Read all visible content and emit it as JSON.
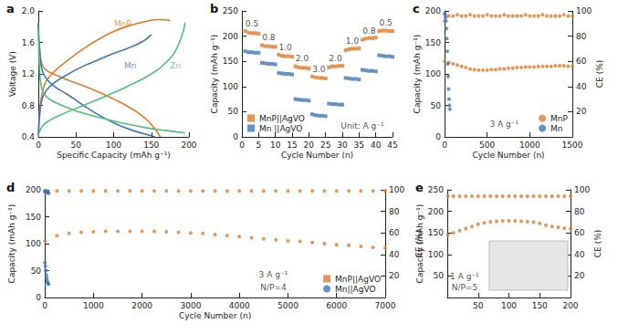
{
  "chart_data": [
    {
      "title": "a",
      "type": "line",
      "x_label": "Specific Capacity (mAh g⁻¹)",
      "y_label": "Voltage (V)",
      "xlim": [
        0,
        200
      ],
      "xticks": [
        0,
        50,
        100,
        150,
        200
      ],
      "ylim": [
        0.4,
        2.0
      ],
      "yticks": [
        0.4,
        0.8,
        1.2,
        1.6,
        {
          "value": 2.0,
          "label": "2.0"
        }
      ],
      "grid": false,
      "series": [
        {
          "color": "#e07b28",
          "x": [
            0,
            2,
            5,
            10,
            20,
            40,
            60,
            80,
            100,
            120,
            140,
            155,
            162
          ],
          "values": [
            1.85,
            1.5,
            1.32,
            1.25,
            1.2,
            1.12,
            1.05,
            0.97,
            0.88,
            0.78,
            0.65,
            0.5,
            0.4
          ]
        },
        {
          "color": "#e07b28",
          "x": [
            0,
            2,
            5,
            10,
            20,
            40,
            60,
            80,
            100,
            120,
            140,
            160,
            175
          ],
          "values": [
            0.4,
            0.75,
            0.95,
            1.1,
            1.22,
            1.38,
            1.52,
            1.64,
            1.74,
            1.81,
            1.86,
            1.89,
            1.88
          ]
        },
        {
          "color": "#3b78b8",
          "x": [
            0,
            2,
            5,
            10,
            20,
            40,
            60,
            80,
            100,
            120,
            140,
            155
          ],
          "values": [
            1.85,
            1.45,
            1.25,
            1.15,
            1.05,
            0.93,
            0.8,
            0.68,
            0.58,
            0.5,
            0.44,
            0.4
          ]
        },
        {
          "color": "#3b78b8",
          "x": [
            0,
            2,
            5,
            10,
            20,
            40,
            60,
            80,
            100,
            120,
            140,
            150
          ],
          "values": [
            0.4,
            0.7,
            0.88,
            0.98,
            1.08,
            1.2,
            1.3,
            1.38,
            1.46,
            1.53,
            1.62,
            1.7
          ]
        },
        {
          "color": "#4fc27a",
          "x": [
            0,
            2,
            5,
            10,
            20,
            50,
            80,
            110,
            140,
            170,
            195
          ],
          "values": [
            1.75,
            1.2,
            1.0,
            0.92,
            0.85,
            0.73,
            0.65,
            0.58,
            0.52,
            0.48,
            0.45
          ]
        },
        {
          "color": "#4fc27a",
          "x": [
            0,
            3,
            10,
            30,
            60,
            90,
            120,
            150,
            170,
            185,
            195
          ],
          "values": [
            0.4,
            0.5,
            0.58,
            0.68,
            0.8,
            0.92,
            1.05,
            1.2,
            1.35,
            1.55,
            1.85
          ]
        }
      ],
      "annotations": [
        {
          "text": "MnP",
          "x": 112,
          "y": 1.84,
          "color": "#e07b28"
        },
        {
          "text": "Mn",
          "x": 122,
          "y": 1.3,
          "color": "#3b78b8"
        },
        {
          "text": "Zn",
          "x": 182,
          "y": 1.3,
          "color": "#4fc27a"
        }
      ]
    },
    {
      "title": "b",
      "type": "scatter",
      "x_label": "Cycle Number (n)",
      "y_label": "Capacity (mAh g⁻¹)",
      "xlim": [
        0,
        45
      ],
      "xticks": [
        0,
        5,
        10,
        15,
        20,
        25,
        30,
        35,
        40,
        45
      ],
      "ylim": [
        0,
        250
      ],
      "yticks": [
        0,
        50,
        100,
        150,
        200,
        250
      ],
      "grid": false,
      "legend": "lower left",
      "marker": "square",
      "series": [
        {
          "name": "MnP||AgVO",
          "color": "#e07b28",
          "x": [
            1,
            2,
            3,
            4,
            5,
            6,
            7,
            8,
            9,
            10,
            11,
            12,
            13,
            14,
            15,
            16,
            17,
            18,
            19,
            20,
            21,
            22,
            23,
            24,
            25,
            26,
            27,
            28,
            29,
            30,
            31,
            32,
            33,
            34,
            35,
            36,
            37,
            38,
            39,
            40,
            41,
            42,
            43,
            44,
            45
          ],
          "values": [
            210,
            207,
            206,
            206,
            205,
            182,
            180,
            180,
            179,
            179,
            163,
            161,
            160,
            160,
            159,
            140,
            138,
            137,
            137,
            136,
            120,
            118,
            117,
            117,
            116,
            138,
            140,
            140,
            141,
            141,
            172,
            174,
            175,
            175,
            176,
            193,
            195,
            196,
            196,
            197,
            210,
            211,
            211,
            210,
            210
          ]
        },
        {
          "name": "Mn ||AgVO",
          "color": "#3b78b8",
          "x": [
            1,
            2,
            3,
            4,
            5,
            6,
            7,
            8,
            9,
            10,
            11,
            12,
            13,
            14,
            15,
            16,
            17,
            18,
            19,
            20,
            21,
            22,
            23,
            24,
            25,
            26,
            27,
            28,
            29,
            30,
            31,
            32,
            33,
            34,
            35,
            36,
            37,
            38,
            39,
            40,
            41,
            42,
            43,
            44,
            45
          ],
          "values": [
            170,
            168,
            168,
            167,
            167,
            147,
            146,
            145,
            145,
            144,
            127,
            126,
            125,
            125,
            124,
            75,
            74,
            73,
            73,
            72,
            45,
            43,
            42,
            42,
            41,
            66,
            65,
            65,
            64,
            64,
            117,
            116,
            115,
            115,
            114,
            133,
            132,
            131,
            131,
            130,
            162,
            161,
            160,
            160,
            159
          ]
        }
      ],
      "annotations": [
        {
          "text": "0.5",
          "x": 3,
          "y": 224
        },
        {
          "text": "0.8",
          "x": 8,
          "y": 198
        },
        {
          "text": "1.0",
          "x": 13,
          "y": 178
        },
        {
          "text": "2.0",
          "x": 18,
          "y": 155
        },
        {
          "text": "3.0",
          "x": 23,
          "y": 134
        },
        {
          "text": "2.0",
          "x": 28,
          "y": 156
        },
        {
          "text": "1.0",
          "x": 33,
          "y": 190
        },
        {
          "text": "0.8",
          "x": 38,
          "y": 210
        },
        {
          "text": "0.5",
          "x": 43,
          "y": 226
        },
        {
          "text": "Unit: A g⁻¹",
          "x": 36,
          "y": 22
        }
      ]
    },
    {
      "title": "c",
      "type": "scatter",
      "x_label": "Cycle Number (n)",
      "y_label": "Capacity (mAh g⁻¹)",
      "y2_label": "CE (%)",
      "xlim": [
        0,
        1500
      ],
      "xticks": [
        0,
        500,
        1000,
        1500
      ],
      "ylim": [
        0,
        200
      ],
      "yticks": [
        0,
        50,
        100,
        150,
        200
      ],
      "y2lim": [
        0,
        100
      ],
      "y2ticks": [
        20,
        40,
        60,
        80,
        100
      ],
      "grid": false,
      "legend": "lower right",
      "marker": "circle",
      "series": [
        {
          "name": "MnP",
          "color": "#e07b28",
          "x": [
            1,
            50,
            100,
            150,
            200,
            250,
            300,
            350,
            400,
            450,
            500,
            550,
            600,
            650,
            700,
            750,
            800,
            850,
            900,
            950,
            1000,
            1050,
            1100,
            1150,
            1200,
            1250,
            1300,
            1350,
            1400,
            1450,
            1500
          ],
          "values": [
            120,
            118,
            116,
            114,
            112,
            110,
            108,
            107,
            106,
            106,
            106,
            107,
            107,
            108,
            108,
            109,
            109,
            110,
            110,
            111,
            111,
            111,
            112,
            112,
            112,
            112,
            113,
            113,
            113,
            112,
            112
          ]
        },
        {
          "name": "MnP",
          "color": "#e07b28",
          "axis": "y2",
          "x": [
            1,
            50,
            100,
            150,
            200,
            250,
            300,
            350,
            400,
            450,
            500,
            550,
            600,
            650,
            700,
            750,
            800,
            850,
            900,
            950,
            1000,
            1050,
            1100,
            1150,
            1200,
            1250,
            1300,
            1350,
            1400,
            1450,
            1500
          ],
          "values": [
            92,
            96,
            96,
            97,
            96,
            96,
            97,
            96,
            96,
            96,
            97,
            96,
            96,
            96,
            97,
            96,
            96,
            96,
            96,
            97,
            96,
            96,
            96,
            97,
            96,
            96,
            96,
            96,
            97,
            96,
            96
          ]
        },
        {
          "name": "Mn",
          "color": "#3b78b8",
          "axis": "y2",
          "x": [
            2,
            7,
            12,
            17,
            22,
            27,
            32,
            37,
            42,
            47,
            52,
            57,
            62
          ],
          "values": [
            98,
            97,
            95,
            92,
            86,
            78,
            68,
            58,
            48,
            38,
            30,
            25,
            22
          ]
        }
      ],
      "annotations": [
        {
          "text": "3 A g⁻¹",
          "x": 700,
          "y": 20
        }
      ]
    },
    {
      "title": "d",
      "type": "scatter",
      "x_label": "Cycle Number (n)",
      "y_label": "Capacity (mAh g⁻¹)",
      "y2_label": "CE (%)",
      "xlim": [
        0,
        7000
      ],
      "xticks": [
        0,
        1000,
        2000,
        3000,
        4000,
        5000,
        6000,
        7000
      ],
      "ylim": [
        0,
        200
      ],
      "yticks": [
        0,
        50,
        100,
        150,
        200
      ],
      "y2lim": [
        0,
        100
      ],
      "y2ticks": [
        20,
        40,
        60,
        80,
        100
      ],
      "grid": false,
      "legend": "lower right",
      "marker": "circle",
      "series": [
        {
          "name": "MnP||AgVO",
          "color": "#e07b28",
          "x": [
            1,
            250,
            500,
            750,
            1000,
            1250,
            1500,
            1750,
            2000,
            2250,
            2500,
            2750,
            3000,
            3250,
            3500,
            3750,
            4000,
            4250,
            4500,
            4750,
            5000,
            5250,
            5500,
            5750,
            6000,
            6250,
            6500,
            6750,
            7000
          ],
          "values": [
            105,
            115,
            119,
            121,
            122,
            123,
            123,
            123,
            123,
            123,
            122,
            121,
            120,
            119,
            117,
            115,
            113,
            111,
            109,
            107,
            105,
            104,
            102,
            100,
            98,
            97,
            95,
            93,
            92
          ]
        },
        {
          "name": "MnP||AgVO",
          "color": "#e07b28",
          "axis": "y2",
          "x": [
            1,
            250,
            500,
            750,
            1000,
            1250,
            1500,
            1750,
            2000,
            2250,
            2500,
            2750,
            3000,
            3250,
            3500,
            3750,
            4000,
            4250,
            4500,
            4750,
            5000,
            5250,
            5500,
            5750,
            6000,
            6250,
            6500,
            6750,
            7000
          ],
          "values": [
            98,
            99,
            99,
            99,
            99,
            99,
            99,
            99,
            99,
            99,
            99,
            99,
            99,
            99,
            99,
            99,
            99,
            99,
            99,
            99,
            99,
            99,
            99,
            99,
            99,
            99,
            99,
            99,
            99
          ]
        },
        {
          "name": "Mn||AgVO",
          "color": "#3b78b8",
          "x": [
            1,
            10,
            20,
            30,
            40,
            50,
            60,
            70,
            80
          ],
          "values": [
            65,
            58,
            50,
            42,
            36,
            31,
            28,
            26,
            25
          ]
        },
        {
          "name": "Mn||AgVO",
          "color": "#3b78b8",
          "axis": "y2",
          "x": [
            1,
            10,
            20,
            30,
            40,
            50,
            60,
            70,
            80
          ],
          "values": [
            99,
            99,
            98,
            98,
            99,
            98,
            98,
            97,
            97
          ]
        }
      ],
      "annotations": [
        {
          "text": "3 A g⁻¹",
          "x": 4700,
          "y": 42
        },
        {
          "text": "N/P=4",
          "x": 4700,
          "y": 18
        }
      ]
    },
    {
      "title": "e",
      "type": "scatter",
      "y_label": "Capacity (mAh g⁻¹)",
      "y2_label": "CE (%)",
      "xlim": [
        0,
        200
      ],
      "xticks": [
        50,
        100,
        150,
        200
      ],
      "ylim": [
        0,
        250
      ],
      "yticks": [
        50,
        100,
        150,
        200,
        250
      ],
      "y2lim": [
        0,
        100
      ],
      "y2ticks": [
        20,
        40,
        60,
        80,
        100
      ],
      "grid": false,
      "marker": "circle",
      "series": [
        {
          "name": "MnP",
          "color": "#e07b28",
          "x": [
            1,
            10,
            20,
            30,
            40,
            50,
            60,
            70,
            80,
            90,
            100,
            110,
            120,
            130,
            140,
            150,
            160,
            170,
            180,
            190,
            200
          ],
          "values": [
            145,
            150,
            155,
            160,
            165,
            170,
            173,
            176,
            177,
            178,
            178,
            178,
            177,
            176,
            175,
            172,
            168,
            165,
            163,
            161,
            160
          ]
        },
        {
          "name": "MnP",
          "color": "#e07b28",
          "axis": "y2",
          "x": [
            1,
            10,
            20,
            30,
            40,
            50,
            60,
            70,
            80,
            90,
            100,
            110,
            120,
            130,
            140,
            150,
            160,
            170,
            180,
            190,
            200
          ],
          "values": [
            94,
            94,
            94,
            94,
            94,
            94,
            94,
            94,
            94,
            94,
            94,
            94,
            94,
            94,
            94,
            94,
            94,
            94,
            94,
            94,
            94
          ]
        }
      ],
      "annotations": [
        {
          "text": "1 A g⁻¹",
          "x": 28,
          "y": 48
        },
        {
          "text": "N/P=5",
          "x": 28,
          "y": 24
        }
      ]
    }
  ]
}
